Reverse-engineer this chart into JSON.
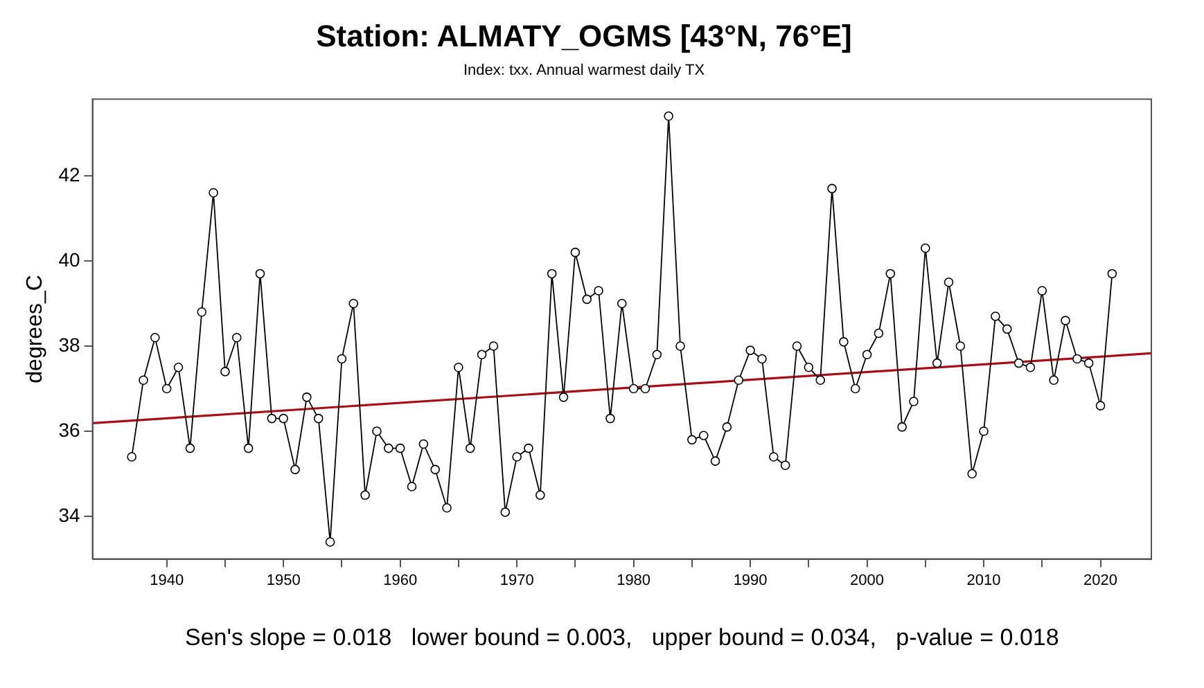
{
  "chart_data": {
    "type": "line",
    "title": "Station: ALMATY_OGMS [43°N, 76°E]",
    "subtitle": "Index: txx. Annual warmest daily TX",
    "ylabel": "degrees_C",
    "annotations": [
      "Sen's slope = 0.018   lower bound = 0.003,   upper bound = 0.034,   p-value = 0.018"
    ],
    "x": [
      1937,
      1938,
      1939,
      1940,
      1941,
      1942,
      1943,
      1944,
      1945,
      1946,
      1947,
      1948,
      1949,
      1950,
      1951,
      1952,
      1953,
      1954,
      1955,
      1956,
      1957,
      1958,
      1959,
      1960,
      1961,
      1962,
      1963,
      1964,
      1965,
      1966,
      1967,
      1968,
      1969,
      1970,
      1971,
      1972,
      1973,
      1974,
      1975,
      1976,
      1977,
      1978,
      1979,
      1980,
      1981,
      1982,
      1983,
      1984,
      1985,
      1986,
      1987,
      1988,
      1989,
      1990,
      1991,
      1992,
      1993,
      1994,
      1995,
      1996,
      1997,
      1998,
      1999,
      2000,
      2001,
      2002,
      2003,
      2004,
      2005,
      2006,
      2007,
      2008,
      2009,
      2010,
      2011,
      2012,
      2013,
      2014,
      2015,
      2016,
      2017,
      2018,
      2019,
      2020,
      2021
    ],
    "series": [
      {
        "color": "#000000",
        "marker": "circle",
        "values": [
          35.4,
          37.2,
          38.2,
          37.0,
          37.5,
          35.6,
          38.8,
          41.6,
          37.4,
          38.2,
          35.6,
          39.7,
          36.3,
          36.3,
          35.1,
          36.8,
          36.3,
          33.4,
          37.7,
          39.0,
          34.5,
          36.0,
          35.6,
          35.6,
          34.7,
          35.7,
          35.1,
          34.2,
          37.5,
          35.6,
          37.8,
          38.0,
          34.1,
          35.4,
          35.6,
          34.5,
          39.7,
          36.8,
          40.2,
          39.1,
          39.3,
          36.3,
          39.0,
          37.0,
          37.0,
          37.8,
          43.4,
          38.0,
          35.8,
          35.9,
          35.3,
          36.1,
          37.2,
          37.9,
          37.7,
          35.4,
          35.2,
          38.0,
          37.5,
          37.2,
          41.7,
          38.1,
          37.0,
          37.8,
          38.3,
          39.7,
          36.1,
          36.7,
          40.3,
          37.6,
          39.5,
          38.0,
          35.0,
          36.0,
          38.7,
          38.4,
          37.6,
          37.5,
          39.3,
          37.2,
          38.6,
          37.7,
          37.6,
          36.6,
          39.7
        ]
      },
      {
        "type": "line",
        "color": "#a50f15",
        "marker": "none",
        "x": [
          1933.64,
          2024.36
        ],
        "values": [
          36.19,
          37.83
        ]
      }
    ],
    "xlim": [
      1933.64,
      2024.36
    ],
    "xticks": [
      1940,
      {
        "value": 1945,
        "label": null
      },
      1950,
      {
        "value": 1955,
        "label": null
      },
      1960,
      {
        "value": 1965,
        "label": null
      },
      1970,
      {
        "value": 1975,
        "label": null
      },
      1980,
      {
        "value": 1985,
        "label": null
      },
      1990,
      {
        "value": 1995,
        "label": null
      },
      2000,
      {
        "value": 2005,
        "label": null
      },
      2010,
      {
        "value": 2015,
        "label": null
      },
      2020
    ],
    "ylim": [
      33.0,
      43.8
    ],
    "yticks": [
      34,
      36,
      38,
      40,
      42
    ],
    "grid": false,
    "legend": false
  }
}
